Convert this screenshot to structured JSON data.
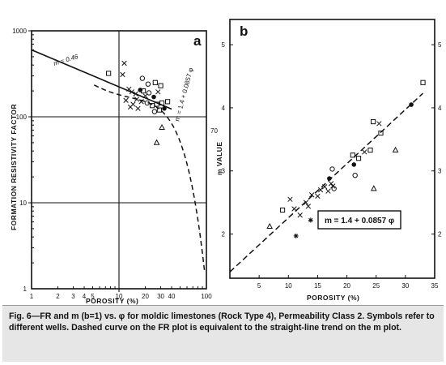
{
  "caption": "Fig. 6—FR and m (b=1) vs. φ for moldic limestones (Rock Type 4), Permeability Class 2. Symbols refer to different wells. Dashed curve on the FR plot is equivalent to the straight-line trend on the m plot.",
  "chart_data": [
    {
      "id": "a",
      "panel_label": "a",
      "type": "scatter",
      "xscale": "log",
      "yscale": "log",
      "xlim": [
        1,
        100
      ],
      "ylim": [
        1,
        1000
      ],
      "xlabel": "POROSITY (%)",
      "ylabel": "FORMATION RESISTIVITY FACTOR",
      "x_tick_labels": [
        "1",
        "2",
        "3",
        "4",
        "5",
        "10",
        "20",
        "30",
        "40",
        "100"
      ],
      "y_tick_labels": [
        "1",
        "10",
        "100",
        "1000"
      ],
      "annotations": [
        "m = 0.46",
        "m = 1.4 + 0.0857 φ",
        "70"
      ],
      "solid_line": {
        "x": [
          1,
          40
        ],
        "y": [
          600,
          123
        ]
      },
      "dashed_curve": "m = 1.4 + 0.0857 φ",
      "points": [
        {
          "x": 7.6,
          "y": 320,
          "s": "square"
        },
        {
          "x": 11.5,
          "y": 420,
          "s": "x"
        },
        {
          "x": 11.0,
          "y": 310,
          "s": "x"
        },
        {
          "x": 18.5,
          "y": 280,
          "s": "open_circle"
        },
        {
          "x": 21.5,
          "y": 240,
          "s": "open_circle"
        },
        {
          "x": 26.0,
          "y": 250,
          "s": "square"
        },
        {
          "x": 30.0,
          "y": 230,
          "s": "square"
        },
        {
          "x": 13.0,
          "y": 210,
          "s": "x"
        },
        {
          "x": 14.0,
          "y": 195,
          "s": "x"
        },
        {
          "x": 15.5,
          "y": 185,
          "s": "x"
        },
        {
          "x": 17.5,
          "y": 205,
          "s": "filled_circle"
        },
        {
          "x": 19.0,
          "y": 200,
          "s": "square"
        },
        {
          "x": 20.0,
          "y": 175,
          "s": "x"
        },
        {
          "x": 22.0,
          "y": 190,
          "s": "open_circle"
        },
        {
          "x": 25.0,
          "y": 170,
          "s": "filled_circle"
        },
        {
          "x": 28.0,
          "y": 195,
          "s": "x"
        },
        {
          "x": 12.0,
          "y": 155,
          "s": "x"
        },
        {
          "x": 14.5,
          "y": 140,
          "s": "x"
        },
        {
          "x": 16.0,
          "y": 160,
          "s": "x"
        },
        {
          "x": 18.0,
          "y": 150,
          "s": "x"
        },
        {
          "x": 21.0,
          "y": 145,
          "s": "open_circle"
        },
        {
          "x": 24.0,
          "y": 135,
          "s": "square"
        },
        {
          "x": 27.0,
          "y": 140,
          "s": "square"
        },
        {
          "x": 31.0,
          "y": 145,
          "s": "square"
        },
        {
          "x": 36.0,
          "y": 150,
          "s": "square"
        },
        {
          "x": 13.5,
          "y": 130,
          "s": "x"
        },
        {
          "x": 16.5,
          "y": 125,
          "s": "x"
        },
        {
          "x": 25.5,
          "y": 115,
          "s": "open_circle"
        },
        {
          "x": 29.0,
          "y": 120,
          "s": "square"
        },
        {
          "x": 33.0,
          "y": 125,
          "s": "filled_circle"
        },
        {
          "x": 31.0,
          "y": 75,
          "s": "triangle"
        },
        {
          "x": 27.0,
          "y": 50,
          "s": "triangle"
        }
      ]
    },
    {
      "id": "b",
      "panel_label": "b",
      "type": "scatter",
      "xlim": [
        0,
        35
      ],
      "ylim": [
        1.3,
        5.4
      ],
      "xlabel": "POROSITY (%)",
      "ylabel": "m VALUE",
      "x_tick_labels": [
        "5",
        "10",
        "15",
        "20",
        "25",
        "30",
        "35"
      ],
      "y_tick_labels": [
        "2",
        "3",
        "4",
        "5"
      ],
      "annotations": [
        "m = 1.4 + 0.0857 φ"
      ],
      "dashed_line": {
        "x": [
          0,
          33
        ],
        "y": [
          1.4,
          4.23
        ]
      },
      "points": [
        {
          "x": 6.8,
          "y": 2.12,
          "s": "triangle"
        },
        {
          "x": 9.0,
          "y": 2.38,
          "s": "square"
        },
        {
          "x": 10.3,
          "y": 2.55,
          "s": "x"
        },
        {
          "x": 11.0,
          "y": 2.4,
          "s": "x"
        },
        {
          "x": 12.0,
          "y": 2.3,
          "s": "x"
        },
        {
          "x": 11.3,
          "y": 1.97,
          "s": "asterisk"
        },
        {
          "x": 13.0,
          "y": 2.5,
          "s": "x"
        },
        {
          "x": 13.4,
          "y": 2.44,
          "s": "x"
        },
        {
          "x": 13.8,
          "y": 2.22,
          "s": "asterisk"
        },
        {
          "x": 14.0,
          "y": 2.62,
          "s": "x"
        },
        {
          "x": 15.0,
          "y": 2.6,
          "s": "x"
        },
        {
          "x": 15.5,
          "y": 2.7,
          "s": "x"
        },
        {
          "x": 16.2,
          "y": 2.75,
          "s": "x"
        },
        {
          "x": 16.8,
          "y": 2.68,
          "s": "x"
        },
        {
          "x": 17.0,
          "y": 2.88,
          "s": "filled_circle"
        },
        {
          "x": 17.3,
          "y": 2.8,
          "s": "x"
        },
        {
          "x": 17.6,
          "y": 2.76,
          "s": "x"
        },
        {
          "x": 17.8,
          "y": 2.72,
          "s": "open_circle"
        },
        {
          "x": 17.5,
          "y": 3.03,
          "s": "open_circle"
        },
        {
          "x": 21.0,
          "y": 3.25,
          "s": "square"
        },
        {
          "x": 21.2,
          "y": 3.1,
          "s": "filled_circle"
        },
        {
          "x": 21.4,
          "y": 2.93,
          "s": "open_circle"
        },
        {
          "x": 22.0,
          "y": 3.2,
          "s": "square"
        },
        {
          "x": 23.0,
          "y": 3.3,
          "s": "x"
        },
        {
          "x": 24.0,
          "y": 3.33,
          "s": "square"
        },
        {
          "x": 24.5,
          "y": 3.78,
          "s": "square"
        },
        {
          "x": 25.5,
          "y": 3.75,
          "s": "x"
        },
        {
          "x": 25.8,
          "y": 3.6,
          "s": "square"
        },
        {
          "x": 24.6,
          "y": 2.72,
          "s": "triangle"
        },
        {
          "x": 28.3,
          "y": 3.33,
          "s": "triangle"
        },
        {
          "x": 31.0,
          "y": 4.05,
          "s": "filled_circle"
        },
        {
          "x": 33.0,
          "y": 4.4,
          "s": "square"
        }
      ]
    }
  ]
}
